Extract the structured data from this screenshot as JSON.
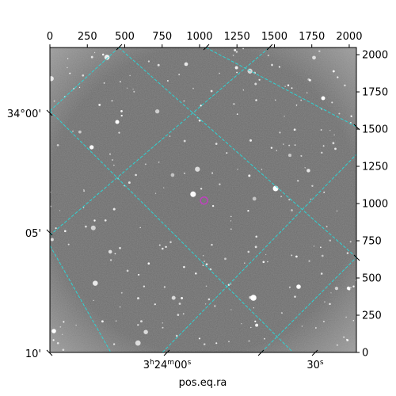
{
  "chart_data": {
    "type": "scatter",
    "title": "",
    "xlabel": "pos.eq.ra",
    "ylabel": "",
    "pixel_axes": {
      "x_ticks": [
        0,
        250,
        500,
        750,
        1000,
        1250,
        1500,
        1750,
        2000
      ],
      "y_ticks": [
        0,
        250,
        500,
        750,
        1000,
        1250,
        1500,
        1750,
        2000
      ],
      "xlim": [
        0,
        2048
      ],
      "ylim": [
        0,
        2048
      ]
    },
    "world_axes": {
      "dec_labels": [
        "34°00'",
        "05'",
        "10'"
      ],
      "ra_labels": [
        {
          "base": "3",
          "sup1": "h",
          "mid": "24",
          "sup2": "m",
          "tail": "00",
          "sup3": "s"
        },
        {
          "base": "30",
          "sup1": "s",
          "mid": "",
          "sup2": "",
          "tail": "",
          "sup3": ""
        }
      ]
    },
    "grid": true,
    "grid_color": "#2ed3d3",
    "marker": {
      "x": 1030,
      "y": 1020,
      "shape": "circle",
      "color": "#c040c0"
    },
    "image_background": "#6e6e6e"
  }
}
